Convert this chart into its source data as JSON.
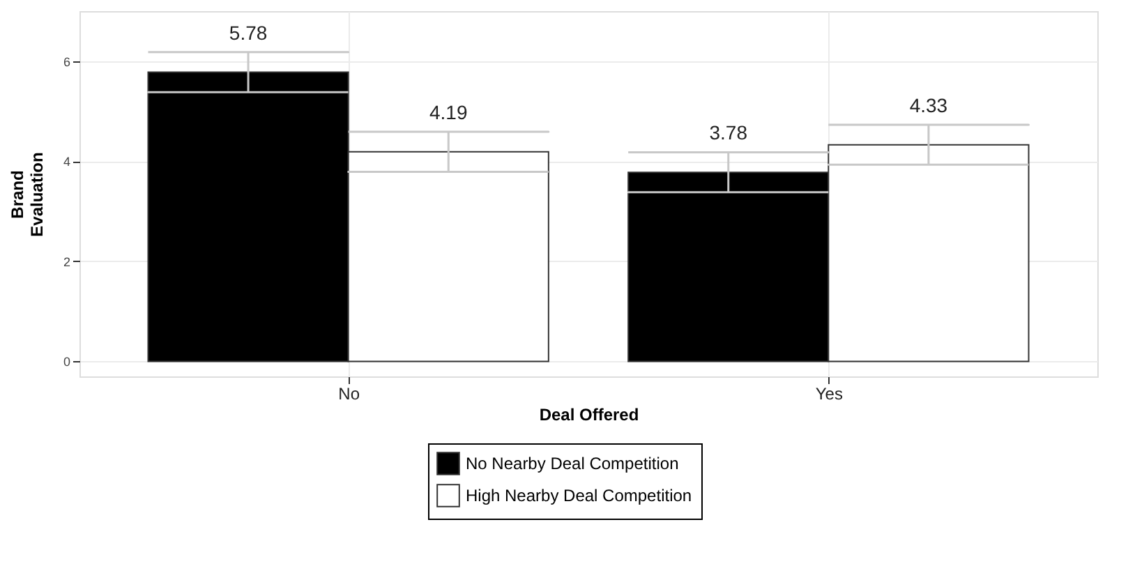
{
  "chart_data": {
    "type": "bar",
    "xlabel": "Deal Offered",
    "ylabel": "Brand Evaluation",
    "categories": [
      "No",
      "Yes"
    ],
    "series": [
      {
        "name": "No Nearby Deal Competition",
        "color": "#000000",
        "values": [
          5.78,
          3.78
        ],
        "errors": [
          0.4,
          0.4
        ]
      },
      {
        "name": "High Nearby Deal Competition",
        "color": "#ffffff",
        "values": [
          4.19,
          4.33
        ],
        "errors": [
          0.4,
          0.4
        ]
      }
    ],
    "ylim": [
      -0.3,
      7.0
    ],
    "yticks": [
      0,
      2,
      4,
      6
    ],
    "grid": true,
    "legend": "bottom",
    "data_labels": true
  }
}
